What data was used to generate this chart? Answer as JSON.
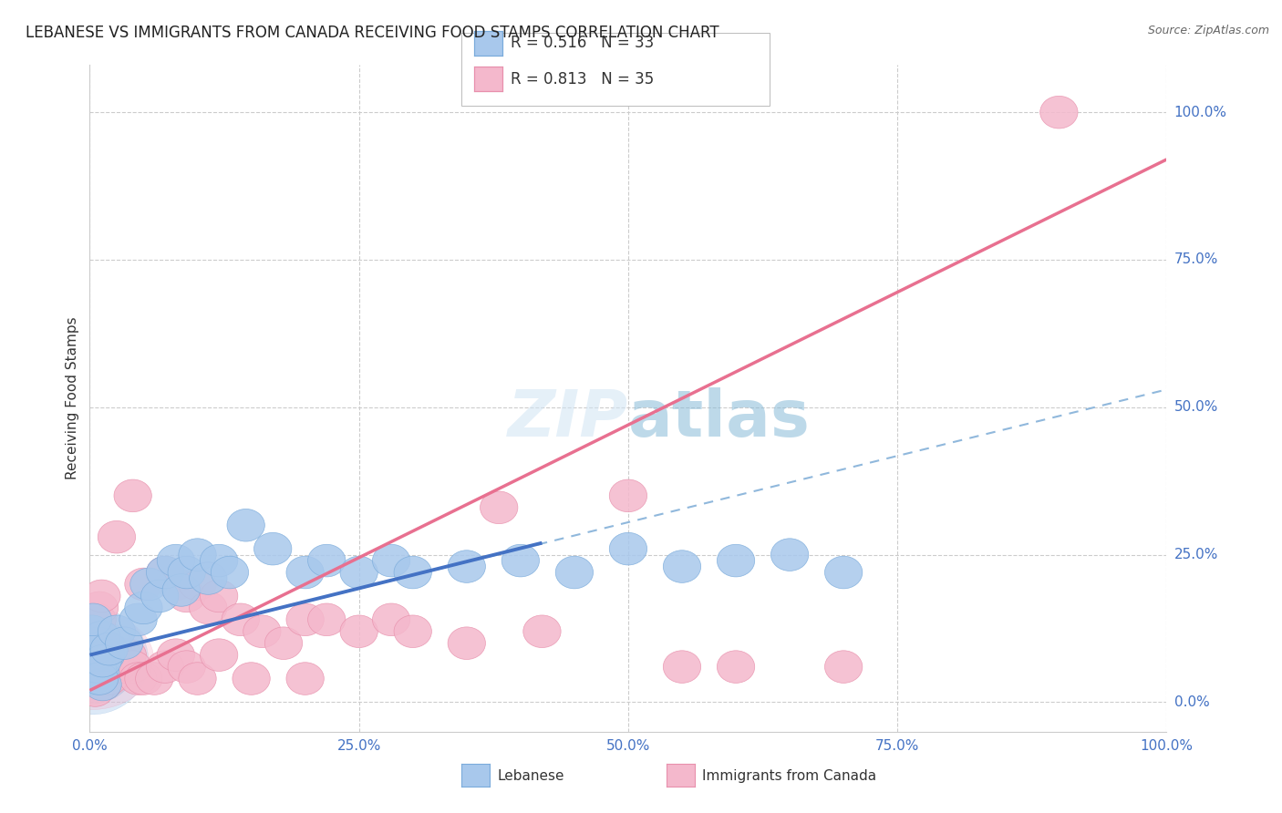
{
  "title": "LEBANESE VS IMMIGRANTS FROM CANADA RECEIVING FOOD STAMPS CORRELATION CHART",
  "source": "Source: ZipAtlas.com",
  "ylabel": "Receiving Food Stamps",
  "ytick_labels": [
    "0.0%",
    "25.0%",
    "50.0%",
    "75.0%",
    "100.0%"
  ],
  "ytick_values": [
    0,
    25,
    50,
    75,
    100
  ],
  "xtick_labels": [
    "0.0%",
    "25.0%",
    "50.0%",
    "75.0%",
    "100.0%"
  ],
  "xtick_values": [
    0,
    25,
    50,
    75,
    100
  ],
  "legend_label1": "Lebanese",
  "legend_label2": "Immigrants from Canada",
  "R1": 0.516,
  "N1": 33,
  "R2": 0.813,
  "N2": 35,
  "color_blue_fill": "#A8C8EC",
  "color_blue_edge": "#7AABDB",
  "color_pink_fill": "#F4B8CC",
  "color_pink_edge": "#E890AC",
  "color_blue_line": "#4472C4",
  "color_pink_line": "#E87090",
  "color_blue_dashed": "#90B8DC",
  "background_color": "#FFFFFF",
  "grid_color": "#CCCCCC",
  "title_color": "#222222",
  "axis_label_color": "#4472C4",
  "source_color": "#666666",
  "watermark_color": "#C8DCF0",
  "blue_points": [
    [
      1.2,
      7.0
    ],
    [
      1.8,
      9.0
    ],
    [
      2.5,
      12.0
    ],
    [
      3.2,
      10.0
    ],
    [
      4.5,
      14.0
    ],
    [
      5.0,
      16.0
    ],
    [
      5.5,
      20.0
    ],
    [
      6.5,
      18.0
    ],
    [
      7.0,
      22.0
    ],
    [
      8.0,
      24.0
    ],
    [
      8.5,
      19.0
    ],
    [
      9.0,
      22.0
    ],
    [
      10.0,
      25.0
    ],
    [
      11.0,
      21.0
    ],
    [
      12.0,
      24.0
    ],
    [
      13.0,
      22.0
    ],
    [
      14.5,
      30.0
    ],
    [
      17.0,
      26.0
    ],
    [
      20.0,
      22.0
    ],
    [
      22.0,
      24.0
    ],
    [
      25.0,
      22.0
    ],
    [
      28.0,
      24.0
    ],
    [
      30.0,
      22.0
    ],
    [
      35.0,
      23.0
    ],
    [
      40.0,
      24.0
    ],
    [
      45.0,
      22.0
    ],
    [
      50.0,
      26.0
    ],
    [
      55.0,
      23.0
    ],
    [
      60.0,
      24.0
    ],
    [
      65.0,
      25.0
    ],
    [
      70.0,
      22.0
    ]
  ],
  "blue_cluster_points": [
    [
      0.3,
      4.0
    ],
    [
      0.5,
      6.0
    ],
    [
      0.6,
      8.0
    ],
    [
      0.8,
      10.0
    ],
    [
      1.0,
      5.0
    ],
    [
      1.0,
      7.0
    ],
    [
      1.2,
      3.0
    ],
    [
      1.5,
      8.0
    ],
    [
      0.2,
      12.0
    ],
    [
      0.4,
      9.0
    ],
    [
      0.7,
      6.0
    ],
    [
      0.9,
      4.0
    ],
    [
      1.1,
      11.0
    ],
    [
      0.3,
      14.0
    ]
  ],
  "pink_points": [
    [
      2.5,
      28.0
    ],
    [
      4.0,
      35.0
    ],
    [
      5.0,
      20.0
    ],
    [
      7.0,
      22.0
    ],
    [
      8.0,
      20.0
    ],
    [
      9.0,
      18.0
    ],
    [
      10.0,
      20.0
    ],
    [
      11.0,
      16.0
    ],
    [
      12.0,
      18.0
    ],
    [
      14.0,
      14.0
    ],
    [
      16.0,
      12.0
    ],
    [
      18.0,
      10.0
    ],
    [
      20.0,
      14.0
    ],
    [
      22.0,
      14.0
    ],
    [
      25.0,
      12.0
    ],
    [
      28.0,
      14.0
    ],
    [
      30.0,
      12.0
    ],
    [
      35.0,
      10.0
    ],
    [
      38.0,
      33.0
    ],
    [
      42.0,
      12.0
    ],
    [
      50.0,
      35.0
    ],
    [
      55.0,
      6.0
    ],
    [
      60.0,
      6.0
    ],
    [
      70.0,
      6.0
    ],
    [
      90.0,
      100.0
    ]
  ],
  "pink_cluster_points": [
    [
      0.3,
      4.0
    ],
    [
      0.5,
      6.0
    ],
    [
      0.6,
      8.0
    ],
    [
      0.8,
      10.0
    ],
    [
      1.0,
      5.0
    ],
    [
      1.0,
      7.0
    ],
    [
      1.2,
      3.0
    ],
    [
      1.5,
      8.0
    ],
    [
      0.2,
      12.0
    ],
    [
      0.4,
      9.0
    ],
    [
      0.7,
      14.0
    ],
    [
      0.9,
      16.0
    ],
    [
      1.1,
      18.0
    ],
    [
      1.3,
      6.0
    ],
    [
      0.5,
      2.0
    ],
    [
      1.8,
      4.0
    ],
    [
      2.0,
      8.0
    ],
    [
      2.5,
      6.0
    ],
    [
      3.0,
      6.0
    ],
    [
      3.5,
      8.0
    ],
    [
      4.0,
      6.0
    ],
    [
      4.5,
      4.0
    ],
    [
      5.0,
      4.0
    ],
    [
      6.0,
      4.0
    ],
    [
      7.0,
      6.0
    ],
    [
      8.0,
      8.0
    ],
    [
      9.0,
      6.0
    ],
    [
      10.0,
      4.0
    ],
    [
      12.0,
      8.0
    ],
    [
      15.0,
      4.0
    ],
    [
      20.0,
      4.0
    ]
  ],
  "blue_line": {
    "x0": 0,
    "y0": 8.0,
    "x1": 42.0,
    "y1": 27.0
  },
  "pink_line": {
    "x0": 0,
    "y0": 2.0,
    "x1": 100.0,
    "y1": 92.0
  },
  "blue_dashed_line": {
    "x0": 0,
    "y0": 8.0,
    "x1": 100.0,
    "y1": 53.0
  },
  "figsize": [
    14.06,
    8.92
  ],
  "dpi": 100
}
